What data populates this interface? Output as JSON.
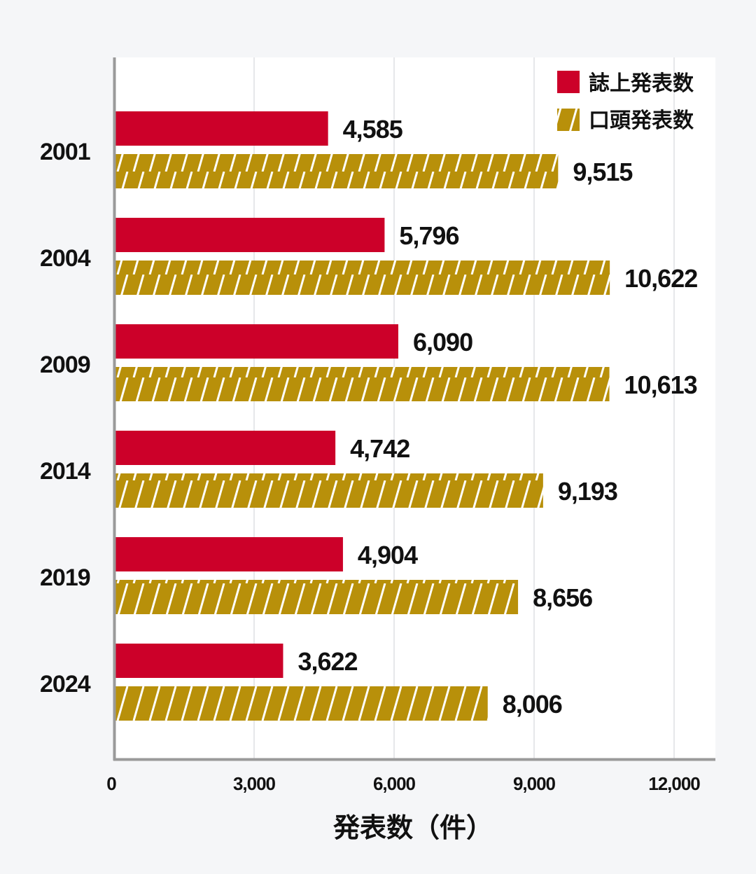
{
  "chart_data": {
    "type": "bar",
    "orientation": "horizontal",
    "categories": [
      "2001",
      "2004",
      "2009",
      "2014",
      "2019",
      "2024"
    ],
    "series": [
      {
        "name": "誌上発表数",
        "values": [
          4585,
          5796,
          6090,
          4742,
          4904,
          3622
        ],
        "labels": [
          "4,585",
          "5,796",
          "6,090",
          "4,742",
          "4,904",
          "3,622"
        ],
        "color": "#cc0029",
        "pattern": "solid"
      },
      {
        "name": "口頭発表数",
        "values": [
          9515,
          10622,
          10613,
          9193,
          8656,
          8006
        ],
        "labels": [
          "9,515",
          "10,622",
          "10,613",
          "9,193",
          "8,656",
          "8,006"
        ],
        "color": "#b8900a",
        "pattern": "hatch"
      }
    ],
    "xlabel": "発表数（件）",
    "ylabel": "",
    "xlim": [
      0,
      12900
    ],
    "xticks": [
      0,
      3000,
      6000,
      9000,
      12000
    ],
    "xtick_labels": [
      "0",
      "3,000",
      "6,000",
      "9,000",
      "12,000"
    ],
    "grid": true,
    "legend": "top-right"
  }
}
